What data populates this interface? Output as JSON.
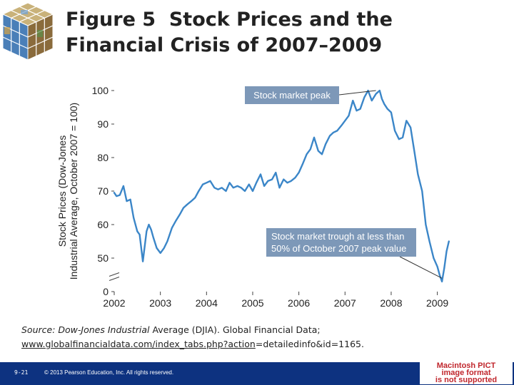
{
  "header": {
    "title_line1": "Figure 5  Stock Prices and the",
    "title_line2": "Financial Crisis of 2007–2009"
  },
  "chart_data": {
    "type": "line",
    "title": "Figure 5  Stock Prices and the Financial Crisis of 2007–2009",
    "xlabel": "",
    "ylabel_line1": "Stock Prices (Dow-Jones",
    "ylabel_line2": "Industrial Average, October 2007 = 100)",
    "xlim": [
      2002,
      2009.3
    ],
    "ylim": [
      0,
      100
    ],
    "y_axis_break": true,
    "xticks": [
      2002,
      2003,
      2004,
      2005,
      2006,
      2007,
      2008,
      2009
    ],
    "xtick_labels": [
      "2002",
      "2003",
      "2004",
      "2005",
      "2006",
      "2007",
      "2008",
      "2009"
    ],
    "yticks": [
      0,
      50,
      60,
      70,
      80,
      90,
      100
    ],
    "ytick_labels": [
      "0",
      "50",
      "60",
      "70",
      "80",
      "90",
      "100"
    ],
    "series": [
      {
        "name": "Dow-Jones Industrial Average (Oct 2007 = 100)",
        "color": "#3b86c8",
        "x": [
          2002.0,
          2002.05,
          2002.12,
          2002.2,
          2002.27,
          2002.35,
          2002.42,
          2002.5,
          2002.55,
          2002.62,
          2002.7,
          2002.75,
          2002.8,
          2002.85,
          2002.92,
          2003.0,
          2003.08,
          2003.15,
          2003.2,
          2003.25,
          2003.33,
          2003.42,
          2003.5,
          2003.58,
          2003.67,
          2003.75,
          2003.83,
          2003.92,
          2004.0,
          2004.08,
          2004.17,
          2004.25,
          2004.33,
          2004.42,
          2004.5,
          2004.58,
          2004.67,
          2004.75,
          2004.83,
          2004.92,
          2005.0,
          2005.08,
          2005.17,
          2005.25,
          2005.33,
          2005.42,
          2005.5,
          2005.58,
          2005.67,
          2005.75,
          2005.83,
          2005.92,
          2006.0,
          2006.08,
          2006.17,
          2006.25,
          2006.33,
          2006.42,
          2006.5,
          2006.58,
          2006.67,
          2006.75,
          2006.83,
          2006.92,
          2007.0,
          2007.08,
          2007.17,
          2007.25,
          2007.33,
          2007.42,
          2007.5,
          2007.58,
          2007.67,
          2007.75,
          2007.8,
          2007.85,
          2007.92,
          2008.0,
          2008.08,
          2008.17,
          2008.25,
          2008.33,
          2008.42,
          2008.5,
          2008.58,
          2008.67,
          2008.75,
          2008.83,
          2008.92,
          2009.0,
          2009.05,
          2009.1,
          2009.15,
          2009.2,
          2009.25
        ],
        "values": [
          69.5,
          68.5,
          68.8,
          71.5,
          67,
          67.5,
          62,
          58,
          57,
          49,
          58,
          60,
          58.5,
          56,
          53,
          51.5,
          53,
          55,
          57,
          59,
          61,
          63,
          65,
          66,
          67,
          68,
          70,
          72,
          72.5,
          73,
          71,
          70.5,
          71,
          70,
          72.5,
          71,
          71.5,
          71,
          70,
          72,
          70,
          72.5,
          75,
          71.5,
          73,
          73.5,
          75.5,
          71,
          73.5,
          72.5,
          73,
          74,
          75.5,
          78,
          81,
          82.5,
          86,
          82,
          81,
          84,
          86.5,
          87.5,
          88,
          89.5,
          91,
          92.5,
          97,
          94,
          94.5,
          98,
          100,
          97,
          99,
          100,
          97.5,
          96,
          94.5,
          93.5,
          88,
          85.5,
          86,
          91,
          89,
          82,
          75,
          70,
          60,
          55,
          50,
          47.5,
          45,
          43,
          47,
          52,
          55
        ]
      }
    ],
    "annotations": [
      {
        "text": "Stock market peak",
        "x": 2007.67,
        "y": 100
      },
      {
        "text_line1": "Stock market trough at less than",
        "text_line2": "50% of October 2007 peak value",
        "x": 2009.1,
        "y": 44
      }
    ]
  },
  "source_note": {
    "line1_italic": "Source: Dow-Jones Industrial",
    "line1_rest": " Average (DJIA). Global Financial Data;",
    "line2_link": "www.globalfinancialdata.com/index_tabs.php?action",
    "line2_rest": "=detailedinfo&id=1165."
  },
  "footer": {
    "page": "9-21",
    "copyright": "© 2013 Pearson Education, Inc. All rights reserved.",
    "pict_line1": "Macintosh PICT",
    "pict_line2": "image format",
    "pict_line3": "is not supported"
  }
}
